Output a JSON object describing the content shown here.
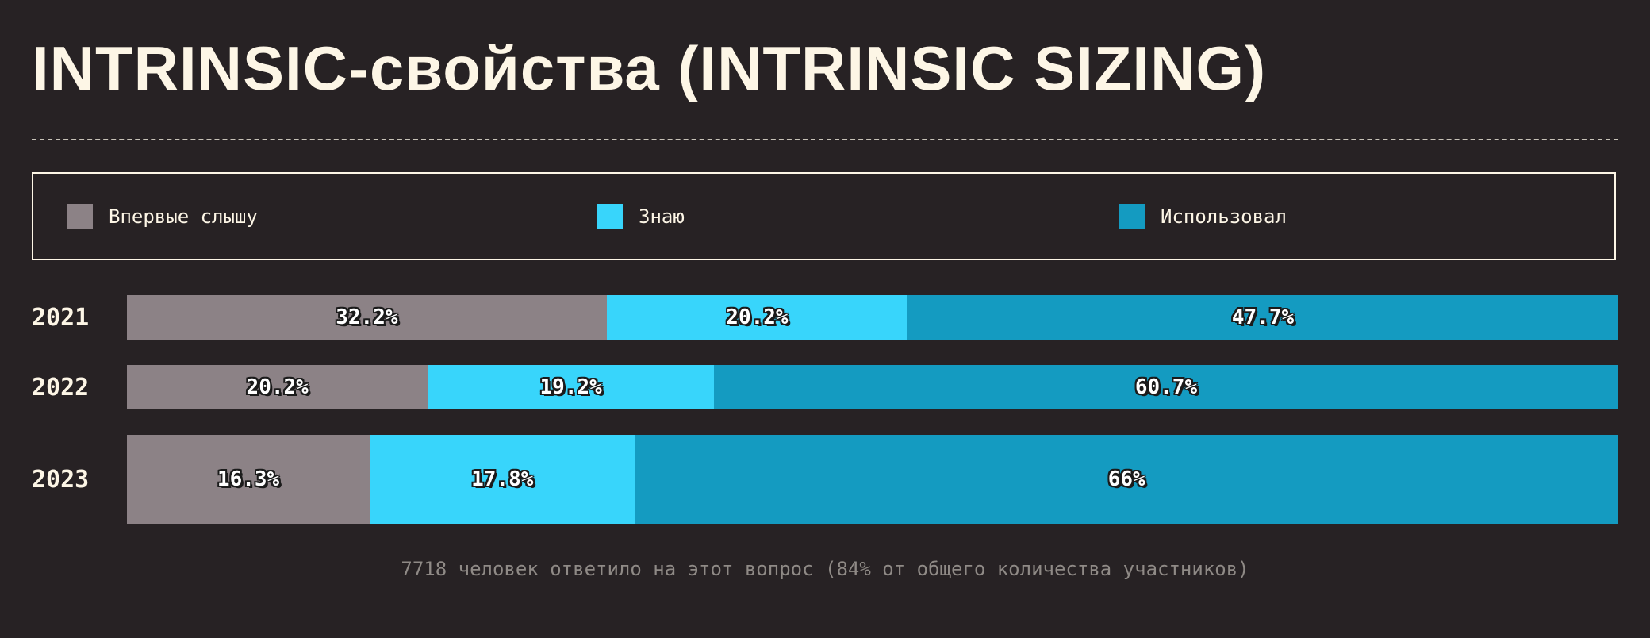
{
  "title": "INTRINSIC-свойства (INTRINSIC SIZING)",
  "footnote": "7718 человек ответило на этот вопрос (84% от общего количества участников)",
  "colors": {
    "background": "#272224",
    "never_heard": "#8c8286",
    "know": "#38d5fb",
    "used": "#149bc1"
  },
  "chart_data": {
    "type": "bar",
    "orientation": "horizontal",
    "stacked": true,
    "percent": true,
    "categories": [
      "2021",
      "2022",
      "2023"
    ],
    "legend_position": "top",
    "series": [
      {
        "name": "Впервые слышу",
        "color": "#8c8286",
        "values": [
          32.2,
          20.2,
          16.3
        ],
        "labels": [
          "32.2%",
          "20.2%",
          "16.3%"
        ]
      },
      {
        "name": "Знаю",
        "color": "#38d5fb",
        "values": [
          20.2,
          19.2,
          17.8
        ],
        "labels": [
          "20.2%",
          "19.2%",
          "17.8%"
        ]
      },
      {
        "name": "Использовал",
        "color": "#149bc1",
        "values": [
          47.7,
          60.7,
          66
        ],
        "labels": [
          "47.7%",
          "60.7%",
          "66%"
        ]
      }
    ]
  }
}
